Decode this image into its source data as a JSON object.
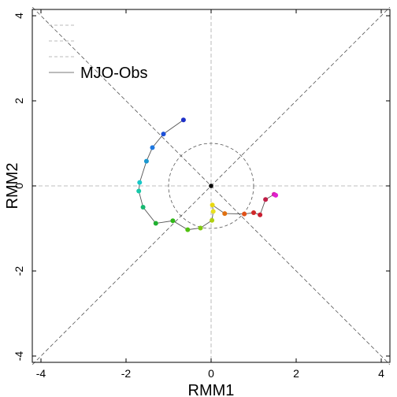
{
  "chart_data": {
    "type": "line",
    "title": "",
    "xlabel": "RMM1",
    "ylabel": "RMM2",
    "xlim": [
      -4.2,
      4.2
    ],
    "ylim": [
      -4.2,
      4.2
    ],
    "x_ticks": [
      -4,
      -2,
      0,
      2,
      4
    ],
    "y_ticks": [
      -4,
      -2,
      0,
      2,
      4
    ],
    "x_tick_labels": [
      "-4",
      "-2",
      "0",
      "2",
      "4"
    ],
    "y_tick_labels": [
      "-4",
      "-2",
      "0",
      "2",
      "4"
    ],
    "grid": false,
    "reference_circle_radius": 1,
    "legend": {
      "placement": "top-left",
      "entries": [
        {
          "label": "",
          "style": "dashed"
        },
        {
          "label": "",
          "style": "dashed"
        },
        {
          "label": "",
          "style": "dashed"
        },
        {
          "label": "MJO-Obs",
          "style": "solid"
        }
      ]
    },
    "series": [
      {
        "name": "MJO-Obs",
        "line_color": "#555555",
        "x": [
          -0.65,
          -1.12,
          -1.38,
          -1.52,
          -1.68,
          -1.7,
          -1.6,
          -1.3,
          -0.9,
          -0.55,
          -0.25,
          0.02,
          0.05,
          0.03,
          0.32,
          0.78,
          1.0,
          1.15,
          1.28,
          1.48,
          1.52
        ],
        "y": [
          1.55,
          1.22,
          0.9,
          0.58,
          0.08,
          -0.12,
          -0.5,
          -0.88,
          -0.82,
          -1.03,
          -0.99,
          -0.81,
          -0.6,
          -0.45,
          -0.65,
          -0.66,
          -0.63,
          -0.68,
          -0.32,
          -0.2,
          -0.22
        ],
        "colors": [
          "#1e30c8",
          "#1e50d8",
          "#1e78e0",
          "#1a98d0",
          "#18c8c8",
          "#16c8a8",
          "#18b870",
          "#20b030",
          "#30b818",
          "#50c010",
          "#80c810",
          "#b0d010",
          "#e8e020",
          "#e8d810",
          "#e07010",
          "#e05018",
          "#d02828",
          "#c81e30",
          "#c01e46",
          "#d81eb0",
          "#e020d0"
        ]
      }
    ],
    "center_point": {
      "x": 0,
      "y": 0,
      "color": "#000000"
    }
  }
}
